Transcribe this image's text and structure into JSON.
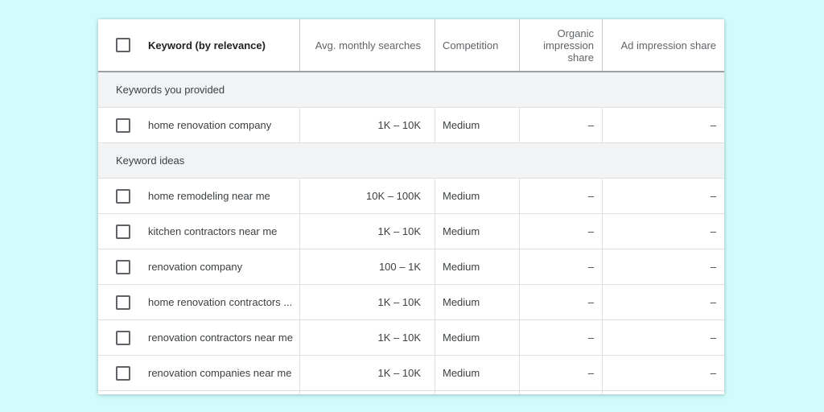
{
  "columns": {
    "keyword": "Keyword (by relevance)",
    "avg_monthly_searches": "Avg. monthly searches",
    "competition": "Competition",
    "organic_impression_share": "Organic impression share",
    "ad_impression_share": "Ad impression share"
  },
  "sections": [
    {
      "label": "Keywords you provided",
      "rows": [
        {
          "keyword": "home renovation company",
          "searches": "1K – 10K",
          "competition": "Medium",
          "organic": "–",
          "ad": "–"
        }
      ]
    },
    {
      "label": "Keyword ideas",
      "rows": [
        {
          "keyword": "home remodeling near me",
          "searches": "10K – 100K",
          "competition": "Medium",
          "organic": "–",
          "ad": "–"
        },
        {
          "keyword": "kitchen contractors near me",
          "searches": "1K – 10K",
          "competition": "Medium",
          "organic": "–",
          "ad": "–"
        },
        {
          "keyword": "renovation company",
          "searches": "100 – 1K",
          "competition": "Medium",
          "organic": "–",
          "ad": "–"
        },
        {
          "keyword": "home renovation contractors ...",
          "searches": "1K – 10K",
          "competition": "Medium",
          "organic": "–",
          "ad": "–"
        },
        {
          "keyword": "renovation contractors near me",
          "searches": "1K – 10K",
          "competition": "Medium",
          "organic": "–",
          "ad": "–"
        },
        {
          "keyword": "renovation companies near me",
          "searches": "1K – 10K",
          "competition": "Medium",
          "organic": "–",
          "ad": "–"
        }
      ]
    }
  ]
}
